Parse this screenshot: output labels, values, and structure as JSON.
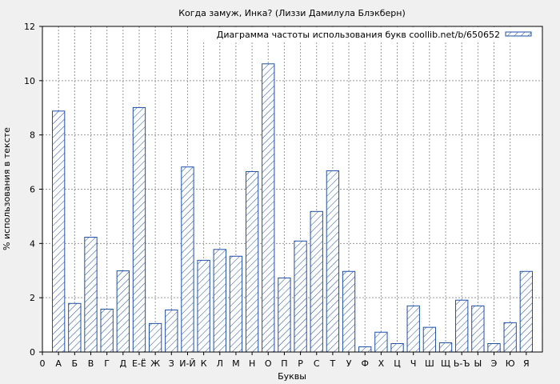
{
  "chart_data": {
    "type": "bar",
    "title": "Когда замуж, Инка? (Лиззи Дамилула Блэкберн)",
    "xlabel": "Буквы",
    "ylabel": "% использования в тексте",
    "ylim": [
      0,
      12
    ],
    "yticks": [
      "0",
      "2",
      "4",
      "6",
      "8",
      "10",
      "12"
    ],
    "grid": true,
    "legend_position": "top-right",
    "x_origin_label": "0",
    "bar_color": "#1f4fa8",
    "series": [
      {
        "name": "Диаграмма частоты использования букв coollib.net/b/650652",
        "values": [
          8.88,
          1.79,
          4.23,
          1.58,
          2.99,
          9.01,
          1.05,
          1.55,
          6.82,
          3.38,
          3.78,
          3.53,
          6.65,
          10.62,
          2.73,
          4.09,
          5.18,
          6.68,
          2.97,
          0.19,
          0.73,
          0.31,
          1.7,
          0.91,
          0.34,
          1.91,
          1.7,
          0.31,
          1.08,
          2.97
        ]
      }
    ],
    "categories": [
      "А",
      "Б",
      "В",
      "Г",
      "Д",
      "Е-Ё",
      "Ж",
      "З",
      "И-Й",
      "К",
      "Л",
      "М",
      "Н",
      "О",
      "П",
      "Р",
      "С",
      "Т",
      "У",
      "Ф",
      "Х",
      "Ц",
      "Ч",
      "Ш",
      "Щ",
      "Ь-Ъ",
      "Ы",
      "Э",
      "Ю",
      "Я"
    ]
  }
}
